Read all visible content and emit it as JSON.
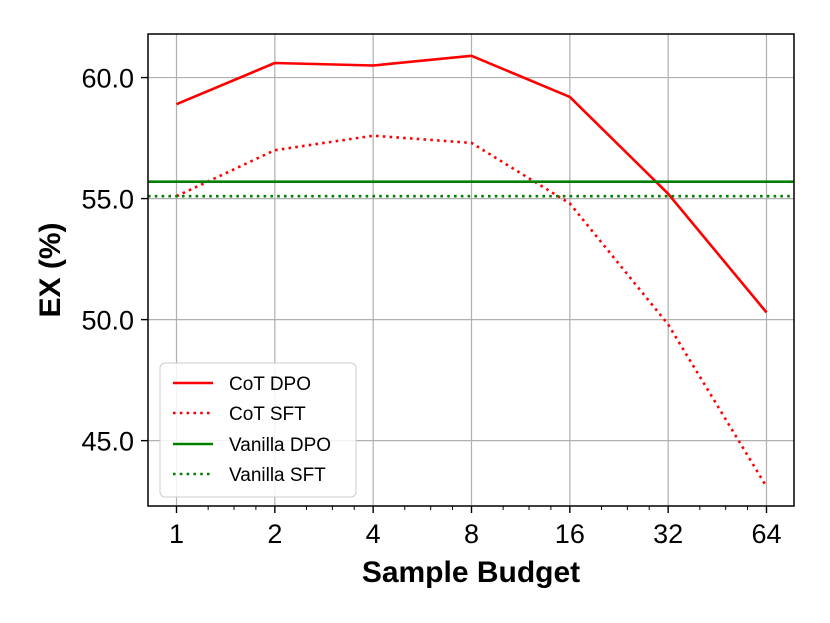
{
  "chart_data": {
    "type": "line",
    "xscale": "log2",
    "x": [
      1,
      2,
      4,
      8,
      16,
      32,
      64
    ],
    "x_tick_labels": [
      "1",
      "2",
      "4",
      "8",
      "16",
      "32",
      "64"
    ],
    "xlabel": "Sample Budget",
    "ylabel": "EX (%)",
    "ylim": [
      42.3,
      61.8
    ],
    "y_ticks": [
      45.0,
      50.0,
      55.0,
      60.0
    ],
    "y_tick_labels": [
      "45.0",
      "50.0",
      "55.0",
      "60.0"
    ],
    "grid": true,
    "legend_position": "lower-left",
    "series": [
      {
        "name": "CoT DPO",
        "color": "#ff0000",
        "style": "solid",
        "values": [
          58.9,
          60.6,
          60.5,
          60.9,
          59.2,
          55.2,
          50.3
        ]
      },
      {
        "name": "CoT SFT",
        "color": "#ff0000",
        "style": "dotted",
        "values": [
          55.1,
          57.0,
          57.6,
          57.3,
          54.8,
          49.8,
          43.1
        ]
      },
      {
        "name": "Vanilla DPO",
        "color": "#008000",
        "style": "solid",
        "constant": 55.7
      },
      {
        "name": "Vanilla SFT",
        "color": "#008000",
        "style": "dotted",
        "constant": 55.1
      }
    ]
  }
}
